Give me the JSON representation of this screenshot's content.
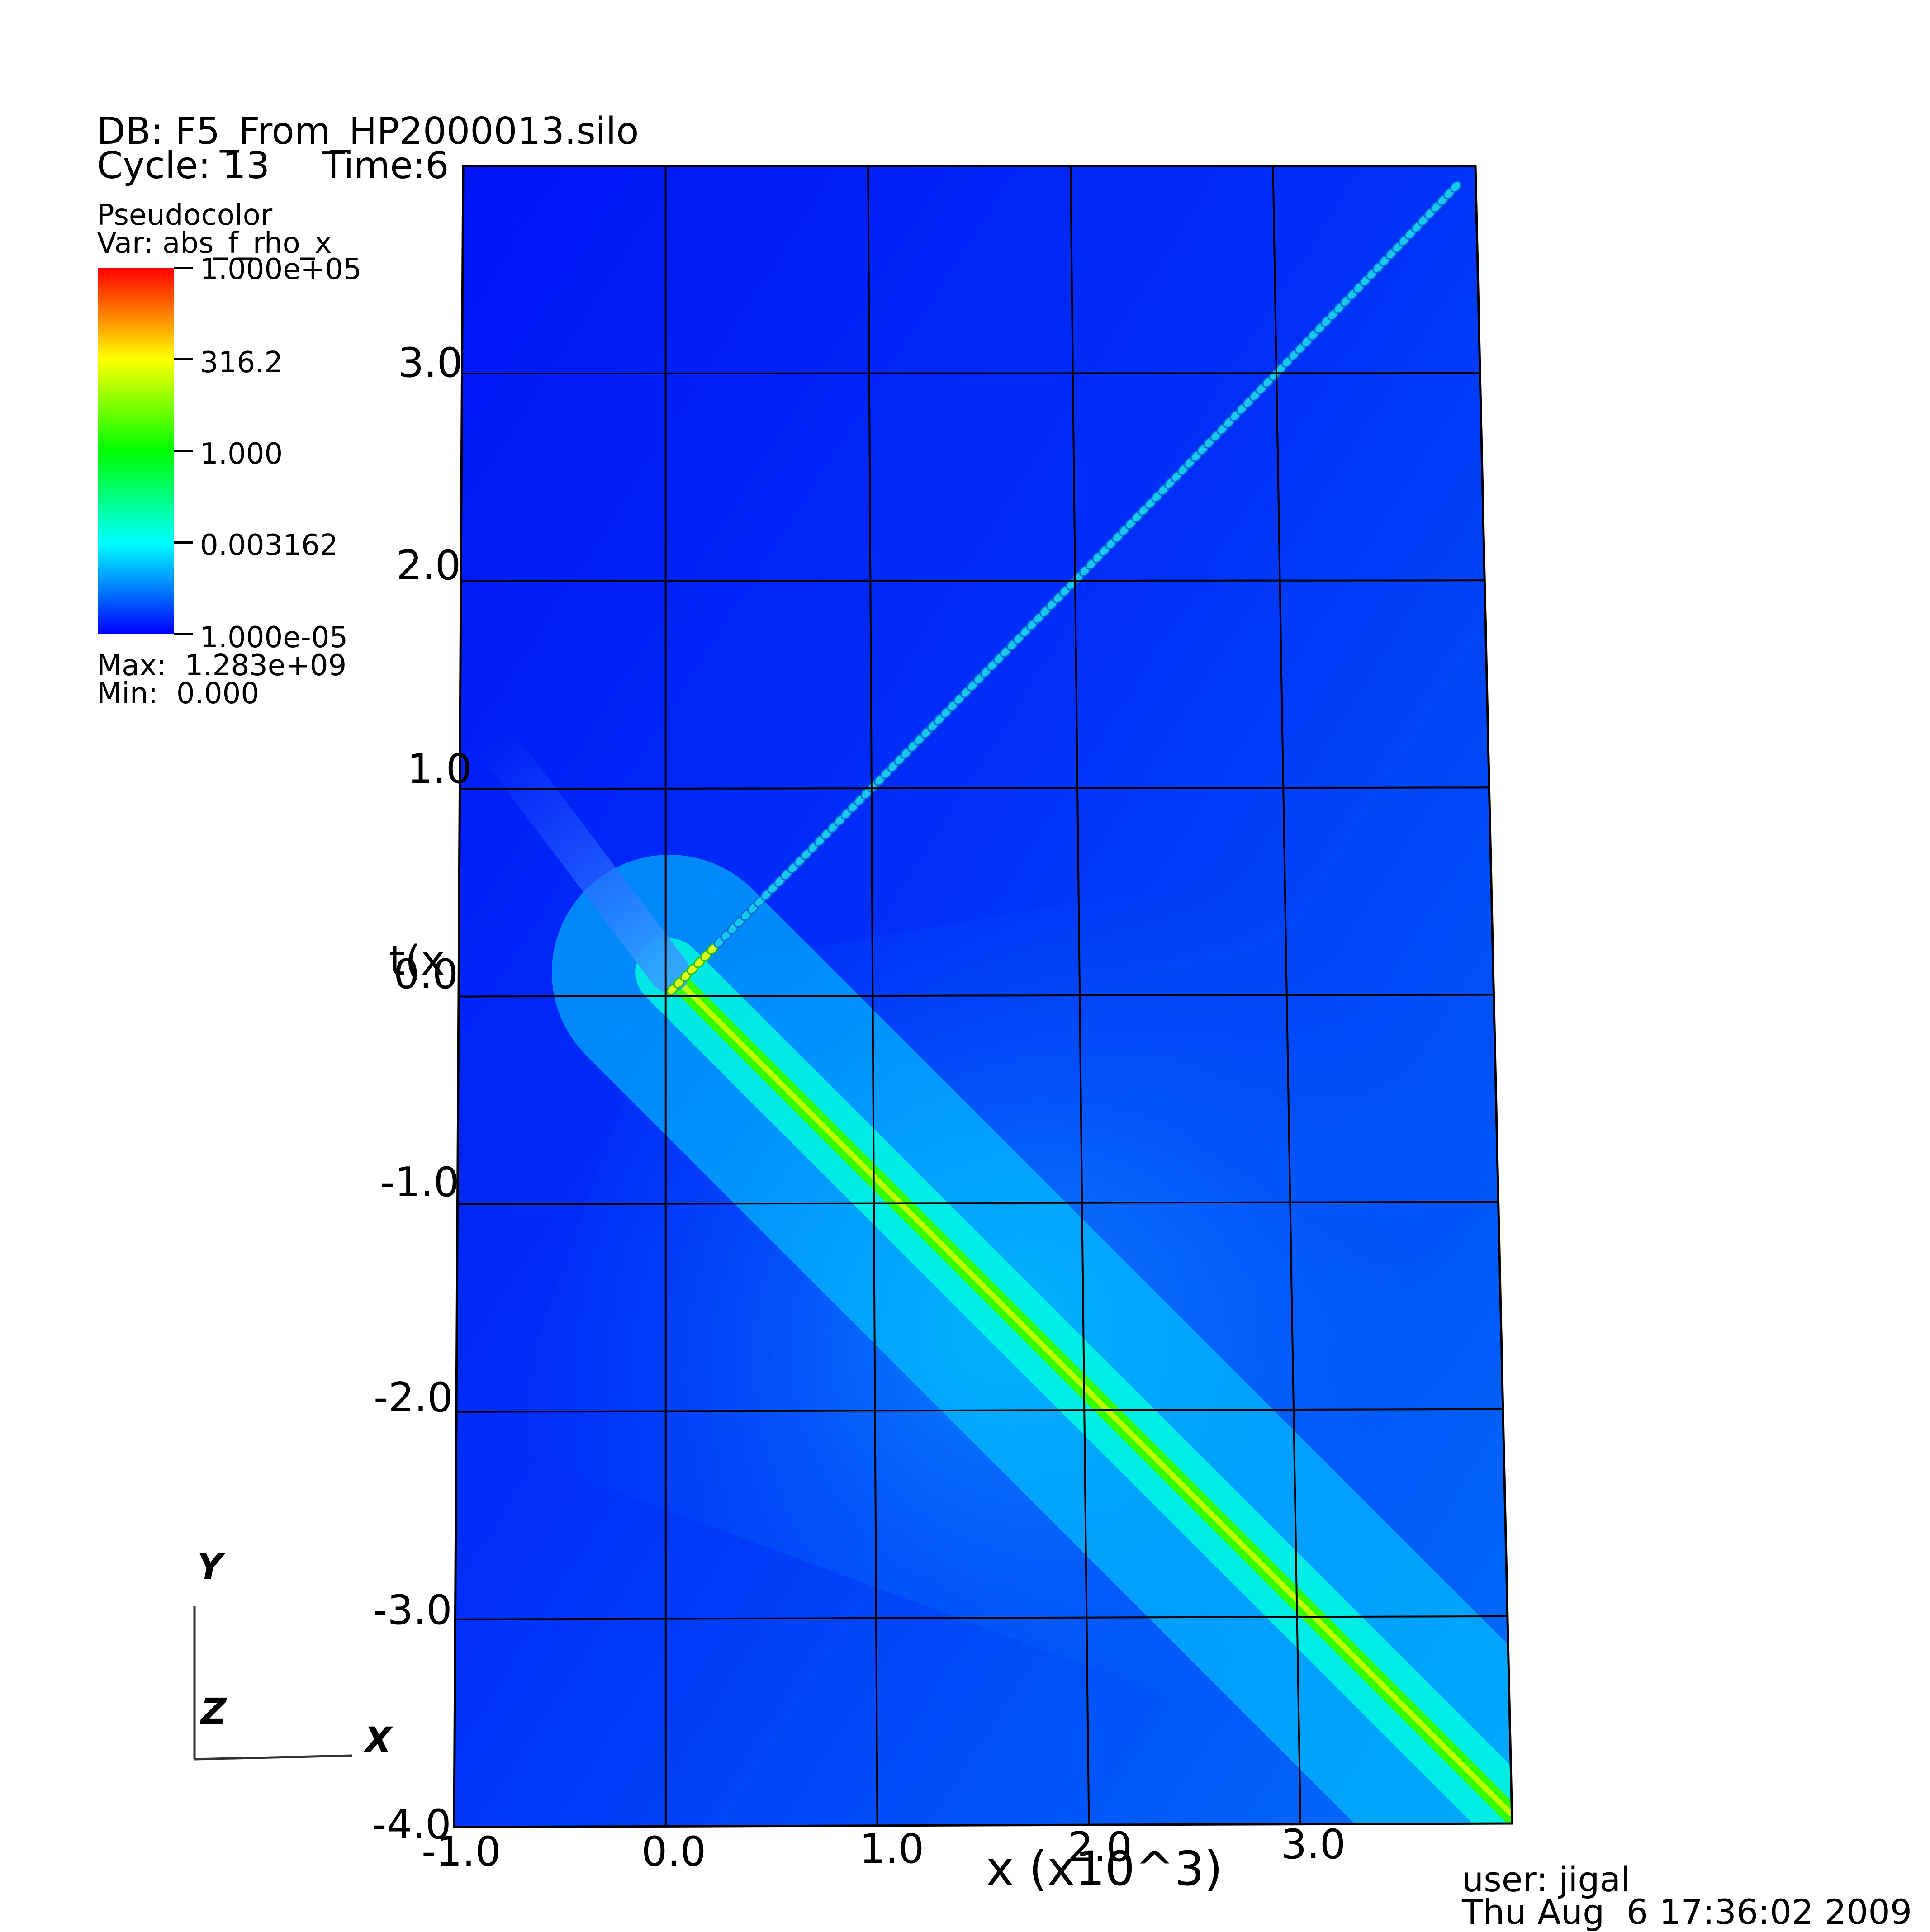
{
  "header": {
    "db": "DB: F5_From_HP2000013.silo",
    "cycle": "Cycle: 13",
    "time": "Time:6"
  },
  "legend": {
    "plot_type": "Pseudocolor",
    "var": "Var: abs_f_rho_x",
    "ticks": [
      "1.000e+05",
      "316.2",
      "1.000",
      "0.003162",
      "1.000e-05"
    ],
    "max": "Max:  1.283e+09",
    "min": "Min:  0.000",
    "colors": [
      "#ff0000",
      "#ffff00",
      "#00ff00",
      "#00ffff",
      "#0000ff"
    ],
    "scale": "log"
  },
  "footer": {
    "user": "user: jigal",
    "date": "Thu Aug  6 17:36:02 2009"
  },
  "triad": {
    "y": "Y",
    "z": "Z",
    "x": "X"
  },
  "chart_data": {
    "type": "heatmap",
    "xlabel": "x (x10^3)",
    "ylabel": "t(x",
    "x_ticks": [
      "-1.0",
      "0.0",
      "1.0",
      "2.0",
      "3.0"
    ],
    "y_ticks": [
      "3.0",
      "2.0",
      "1.0",
      "0.0",
      "-1.0",
      "-2.0",
      "-3.0",
      "-4.0"
    ],
    "xlim": [
      -1.0,
      4.0
    ],
    "ylim": [
      -4.0,
      4.0
    ],
    "grid": true,
    "features": [
      {
        "type": "beaded-diagonal",
        "from": [
          0.0,
          0.0
        ],
        "to": [
          3.9,
          3.9
        ],
        "color": "#19c8f0"
      },
      {
        "type": "bright-diagonal",
        "from": [
          0.0,
          0.0
        ],
        "to": [
          4.0,
          -4.0
        ],
        "color": "#39ff00"
      },
      {
        "type": "faint-diagonal",
        "from": [
          -0.8,
          1.1
        ],
        "to": [
          0.0,
          0.0
        ]
      }
    ]
  }
}
